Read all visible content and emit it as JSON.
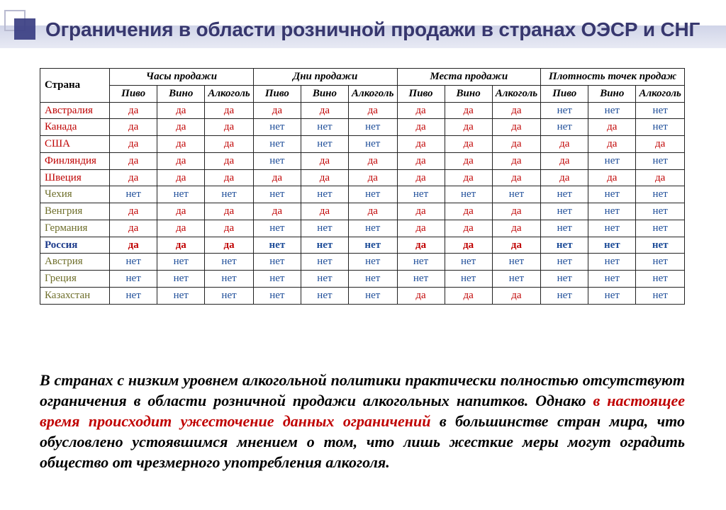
{
  "title": "Ограничения в области розничной продажи в странах ОЭСР и СНГ",
  "columns": {
    "country": "Страна",
    "groups": [
      "Часы продажи",
      "Дни продажи",
      "Места продажи",
      "Плотность точек продаж"
    ],
    "subs": [
      "Пиво",
      "Вино",
      "Алкоголь"
    ]
  },
  "colors": {
    "yes": "#c00000",
    "no": "#1f4e99",
    "country_default": "#be0000",
    "country_alt": "#6e6e2a",
    "country_russia": "#1e3c8c",
    "title": "#37376e",
    "highlight": "#c00000"
  },
  "rows": [
    {
      "name": "Австралия",
      "color": "#be0000",
      "cells": [
        "да",
        "да",
        "да",
        "да",
        "да",
        "да",
        "да",
        "да",
        "да",
        "нет",
        "нет",
        "нет"
      ],
      "bold": false
    },
    {
      "name": "Канада",
      "color": "#be0000",
      "cells": [
        "да",
        "да",
        "да",
        "нет",
        "нет",
        "нет",
        "да",
        "да",
        "да",
        "нет",
        "да",
        "нет"
      ],
      "bold": false
    },
    {
      "name": "США",
      "color": "#be0000",
      "cells": [
        "да",
        "да",
        "да",
        "нет",
        "нет",
        "нет",
        "да",
        "да",
        "да",
        "да",
        "да",
        "да"
      ],
      "bold": false
    },
    {
      "name": "Финляндия",
      "color": "#be0000",
      "cells": [
        "да",
        "да",
        "да",
        "нет",
        "да",
        "да",
        "да",
        "да",
        "да",
        "да",
        "нет",
        "нет"
      ],
      "bold": false
    },
    {
      "name": "Швеция",
      "color": "#be0000",
      "cells": [
        "да",
        "да",
        "да",
        "да",
        "да",
        "да",
        "да",
        "да",
        "да",
        "да",
        "да",
        "да"
      ],
      "bold": false
    },
    {
      "name": "Чехия",
      "color": "#6e6e2a",
      "cells": [
        "нет",
        "нет",
        "нет",
        "нет",
        "нет",
        "нет",
        "нет",
        "нет",
        "нет",
        "нет",
        "нет",
        "нет"
      ],
      "bold": false
    },
    {
      "name": "Венгрия",
      "color": "#6e6e2a",
      "cells": [
        "да",
        "да",
        "да",
        "да",
        "да",
        "да",
        "да",
        "да",
        "да",
        "нет",
        "нет",
        "нет"
      ],
      "bold": false
    },
    {
      "name": "Германия",
      "color": "#6e6e2a",
      "cells": [
        "да",
        "да",
        "да",
        "нет",
        "нет",
        "нет",
        "да",
        "да",
        "да",
        "нет",
        "нет",
        "нет"
      ],
      "bold": false
    },
    {
      "name": "Россия",
      "color": "#1e3c8c",
      "cells": [
        "да",
        "да",
        "да",
        "нет",
        "нет",
        "нет",
        "да",
        "да",
        "да",
        "нет",
        "нет",
        "нет"
      ],
      "bold": true
    },
    {
      "name": "Австрия",
      "color": "#6e6e2a",
      "cells": [
        "нет",
        "нет",
        "нет",
        "нет",
        "нет",
        "нет",
        "нет",
        "нет",
        "нет",
        "нет",
        "нет",
        "нет"
      ],
      "bold": false
    },
    {
      "name": "Греция",
      "color": "#6e6e2a",
      "cells": [
        "нет",
        "нет",
        "нет",
        "нет",
        "нет",
        "нет",
        "нет",
        "нет",
        "нет",
        "нет",
        "нет",
        "нет"
      ],
      "bold": false
    },
    {
      "name": "Казахстан",
      "color": "#6e6e2a",
      "cells": [
        "нет",
        "нет",
        "нет",
        "нет",
        "нет",
        "нет",
        "да",
        "да",
        "да",
        "нет",
        "нет",
        "нет"
      ],
      "bold": false
    }
  ],
  "paragraph": {
    "p1": "В странах с низким уровнем алкогольной политики практически полностью отсутствуют ограничения в области розничной продажи алкогольных напитков. Однако ",
    "hl1": "в настоящее время происходит ужесточение данных ограничений",
    "p2": " в большинстве стран мира, что обусловлено устоявшимся мнением о том, что лишь жесткие меры могут оградить общество от чрезмерного употребления алкоголя."
  }
}
